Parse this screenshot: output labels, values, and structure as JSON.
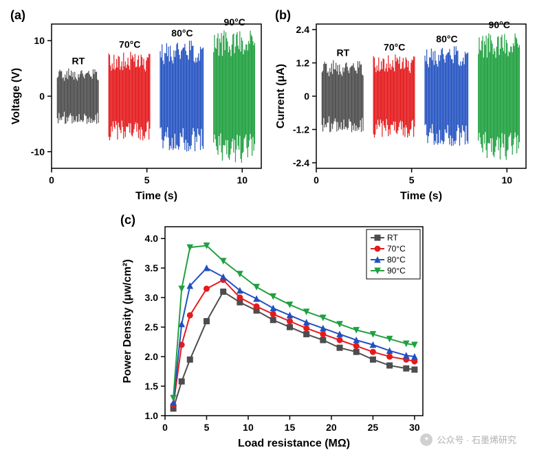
{
  "panel_a": {
    "label": "(a)",
    "type": "time-series-bursts",
    "xlabel": "Time (s)",
    "ylabel": "Voltage (V)",
    "xlim": [
      0,
      11
    ],
    "ylim": [
      -13,
      13
    ],
    "xticks": [
      0,
      5,
      10
    ],
    "yticks": [
      -10,
      0,
      10
    ],
    "label_fontsize": 16,
    "tick_fontsize": 14,
    "series": [
      {
        "label": "RT",
        "color": "#4d4d4d",
        "x_start": 0.3,
        "x_end": 2.5,
        "amp": 5
      },
      {
        "label": "70°C",
        "color": "#e41a1c",
        "x_start": 3.0,
        "x_end": 5.2,
        "amp": 8
      },
      {
        "label": "80°C",
        "color": "#2050c0",
        "x_start": 5.7,
        "x_end": 8.0,
        "amp": 10
      },
      {
        "label": "90°C",
        "color": "#20a040",
        "x_start": 8.5,
        "x_end": 10.7,
        "amp": 12
      }
    ]
  },
  "panel_b": {
    "label": "(b)",
    "type": "time-series-bursts",
    "xlabel": "Time (s)",
    "ylabel": "Current (μA)",
    "xlim": [
      0,
      11
    ],
    "ylim": [
      -2.6,
      2.6
    ],
    "xticks": [
      0,
      5,
      10
    ],
    "yticks": [
      -2.4,
      -1.2,
      0.0,
      1.2,
      2.4
    ],
    "label_fontsize": 16,
    "tick_fontsize": 14,
    "series": [
      {
        "label": "RT",
        "color": "#4d4d4d",
        "x_start": 0.3,
        "x_end": 2.5,
        "amp": 1.3
      },
      {
        "label": "70°C",
        "color": "#e41a1c",
        "x_start": 3.0,
        "x_end": 5.2,
        "amp": 1.5
      },
      {
        "label": "80°C",
        "color": "#2050c0",
        "x_start": 5.7,
        "x_end": 8.0,
        "amp": 1.8
      },
      {
        "label": "90°C",
        "color": "#20a040",
        "x_start": 8.5,
        "x_end": 10.7,
        "amp": 2.3
      }
    ]
  },
  "panel_c": {
    "label": "(c)",
    "type": "line",
    "xlabel": "Load resistance (MΩ)",
    "ylabel": "Power Density (μw/cm²)",
    "xlim": [
      0,
      31
    ],
    "ylim": [
      1.0,
      4.2
    ],
    "xticks": [
      0,
      5,
      10,
      15,
      20,
      25,
      30
    ],
    "yticks": [
      1.0,
      1.5,
      2.0,
      2.5,
      3.0,
      3.5,
      4.0
    ],
    "label_fontsize": 16,
    "tick_fontsize": 14,
    "x_data": [
      1,
      2,
      3,
      5,
      7,
      9,
      11,
      13,
      15,
      17,
      19,
      21,
      23,
      25,
      27,
      29,
      30
    ],
    "series": [
      {
        "label": "RT",
        "color": "#4d4d4d",
        "marker": "square",
        "y": [
          1.12,
          1.58,
          1.95,
          2.6,
          3.1,
          2.92,
          2.78,
          2.62,
          2.5,
          2.38,
          2.28,
          2.15,
          2.08,
          1.95,
          1.85,
          1.8,
          1.78
        ]
      },
      {
        "label": "70°C",
        "color": "#e41a1c",
        "marker": "circle",
        "y": [
          1.18,
          2.2,
          2.7,
          3.15,
          3.3,
          3.0,
          2.85,
          2.72,
          2.6,
          2.48,
          2.38,
          2.28,
          2.18,
          2.08,
          2.0,
          1.95,
          1.92
        ]
      },
      {
        "label": "80°C",
        "color": "#2050c0",
        "marker": "triangle",
        "y": [
          1.22,
          2.55,
          3.2,
          3.5,
          3.35,
          3.12,
          2.98,
          2.82,
          2.7,
          2.58,
          2.48,
          2.38,
          2.28,
          2.2,
          2.1,
          2.02,
          2.0
        ]
      },
      {
        "label": "90°C",
        "color": "#20a040",
        "marker": "triangle-down",
        "y": [
          1.3,
          3.15,
          3.85,
          3.88,
          3.62,
          3.4,
          3.18,
          3.02,
          2.88,
          2.76,
          2.66,
          2.55,
          2.45,
          2.38,
          2.3,
          2.22,
          2.2
        ]
      }
    ],
    "legend_pos": "top-right"
  },
  "watermark": {
    "text": "公众号 · 石墨烯研究"
  },
  "colors": {
    "axis": "#000000",
    "background": "#ffffff"
  }
}
